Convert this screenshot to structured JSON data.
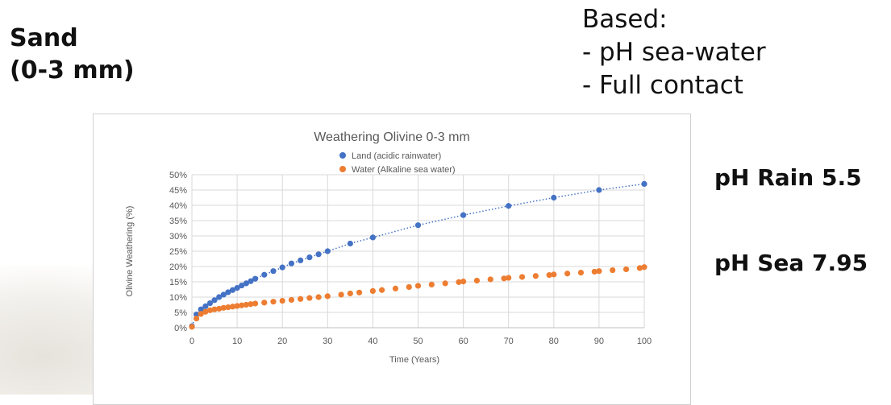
{
  "slide": {
    "sand_line1": "Sand",
    "sand_line2": "(0-3 mm)",
    "based_title": "Based:",
    "based_items": [
      "- pH sea-water",
      "- Full contact"
    ],
    "ph_rain": "pH Rain 5.5",
    "ph_sea": "pH Sea 7.95"
  },
  "chart_data": {
    "type": "scatter",
    "title": "Weathering Olivine 0-3 mm",
    "xlabel": "Time (Years)",
    "ylabel": "Olivine Weathering (%)",
    "xlim": [
      0,
      100
    ],
    "ylim": [
      0,
      50
    ],
    "x_ticks": [
      0,
      10,
      20,
      30,
      40,
      50,
      60,
      70,
      80,
      90,
      100
    ],
    "x_tick_labels": [
      "0",
      "10",
      "20",
      "30",
      "40",
      "50",
      "60",
      "70",
      "80",
      "90",
      "100"
    ],
    "y_ticks": [
      0,
      5,
      10,
      15,
      20,
      25,
      30,
      35,
      40,
      45,
      50
    ],
    "y_tick_labels": [
      "0%",
      "5%",
      "10%",
      "15%",
      "20%",
      "25%",
      "30%",
      "35%",
      "40%",
      "45%",
      "50%"
    ],
    "grid": true,
    "legend_position": "top",
    "series": [
      {
        "name": "Land (acidic rainwater)",
        "color": "#4472c4",
        "trendline": "dotted",
        "points": [
          [
            0,
            0.5
          ],
          [
            1,
            4.3
          ],
          [
            2,
            6.0
          ],
          [
            3,
            7.0
          ],
          [
            4,
            8.0
          ],
          [
            5,
            9.0
          ],
          [
            6,
            10.0
          ],
          [
            7,
            10.8
          ],
          [
            8,
            11.6
          ],
          [
            9,
            12.3
          ],
          [
            10,
            13.0
          ],
          [
            11,
            13.8
          ],
          [
            12,
            14.5
          ],
          [
            13,
            15.2
          ],
          [
            14,
            16.0
          ],
          [
            16,
            17.3
          ],
          [
            18,
            18.5
          ],
          [
            20,
            19.7
          ],
          [
            22,
            21.0
          ],
          [
            24,
            22.0
          ],
          [
            26,
            23.0
          ],
          [
            28,
            24.0
          ],
          [
            30,
            25.0
          ],
          [
            35,
            27.5
          ],
          [
            40,
            29.5
          ],
          [
            50,
            33.5
          ],
          [
            60,
            36.8
          ],
          [
            70,
            39.8
          ],
          [
            80,
            42.5
          ],
          [
            90,
            45.0
          ],
          [
            100,
            47.0
          ]
        ]
      },
      {
        "name": "Water (Alkaline sea water)",
        "color": "#ed7d31",
        "trendline": "none",
        "points": [
          [
            0,
            0.3
          ],
          [
            1,
            3.0
          ],
          [
            2,
            4.5
          ],
          [
            3,
            5.2
          ],
          [
            4,
            5.7
          ],
          [
            5,
            6.0
          ],
          [
            6,
            6.2
          ],
          [
            7,
            6.5
          ],
          [
            8,
            6.7
          ],
          [
            9,
            6.9
          ],
          [
            10,
            7.1
          ],
          [
            11,
            7.3
          ],
          [
            12,
            7.5
          ],
          [
            13,
            7.7
          ],
          [
            14,
            7.9
          ],
          [
            16,
            8.2
          ],
          [
            18,
            8.5
          ],
          [
            20,
            8.8
          ],
          [
            22,
            9.1
          ],
          [
            24,
            9.4
          ],
          [
            26,
            9.7
          ],
          [
            28,
            10.0
          ],
          [
            30,
            10.3
          ],
          [
            33,
            10.8
          ],
          [
            35,
            11.2
          ],
          [
            37,
            11.5
          ],
          [
            40,
            12.0
          ],
          [
            42,
            12.3
          ],
          [
            45,
            12.8
          ],
          [
            48,
            13.3
          ],
          [
            50,
            13.7
          ],
          [
            53,
            14.1
          ],
          [
            56,
            14.5
          ],
          [
            59,
            14.9
          ],
          [
            60,
            15.1
          ],
          [
            63,
            15.4
          ],
          [
            66,
            15.8
          ],
          [
            69,
            16.1
          ],
          [
            70,
            16.3
          ],
          [
            73,
            16.6
          ],
          [
            76,
            16.9
          ],
          [
            79,
            17.2
          ],
          [
            80,
            17.4
          ],
          [
            83,
            17.7
          ],
          [
            86,
            18.0
          ],
          [
            89,
            18.3
          ],
          [
            90,
            18.5
          ],
          [
            93,
            18.8
          ],
          [
            96,
            19.1
          ],
          [
            99,
            19.5
          ],
          [
            100,
            19.8
          ]
        ]
      }
    ]
  }
}
